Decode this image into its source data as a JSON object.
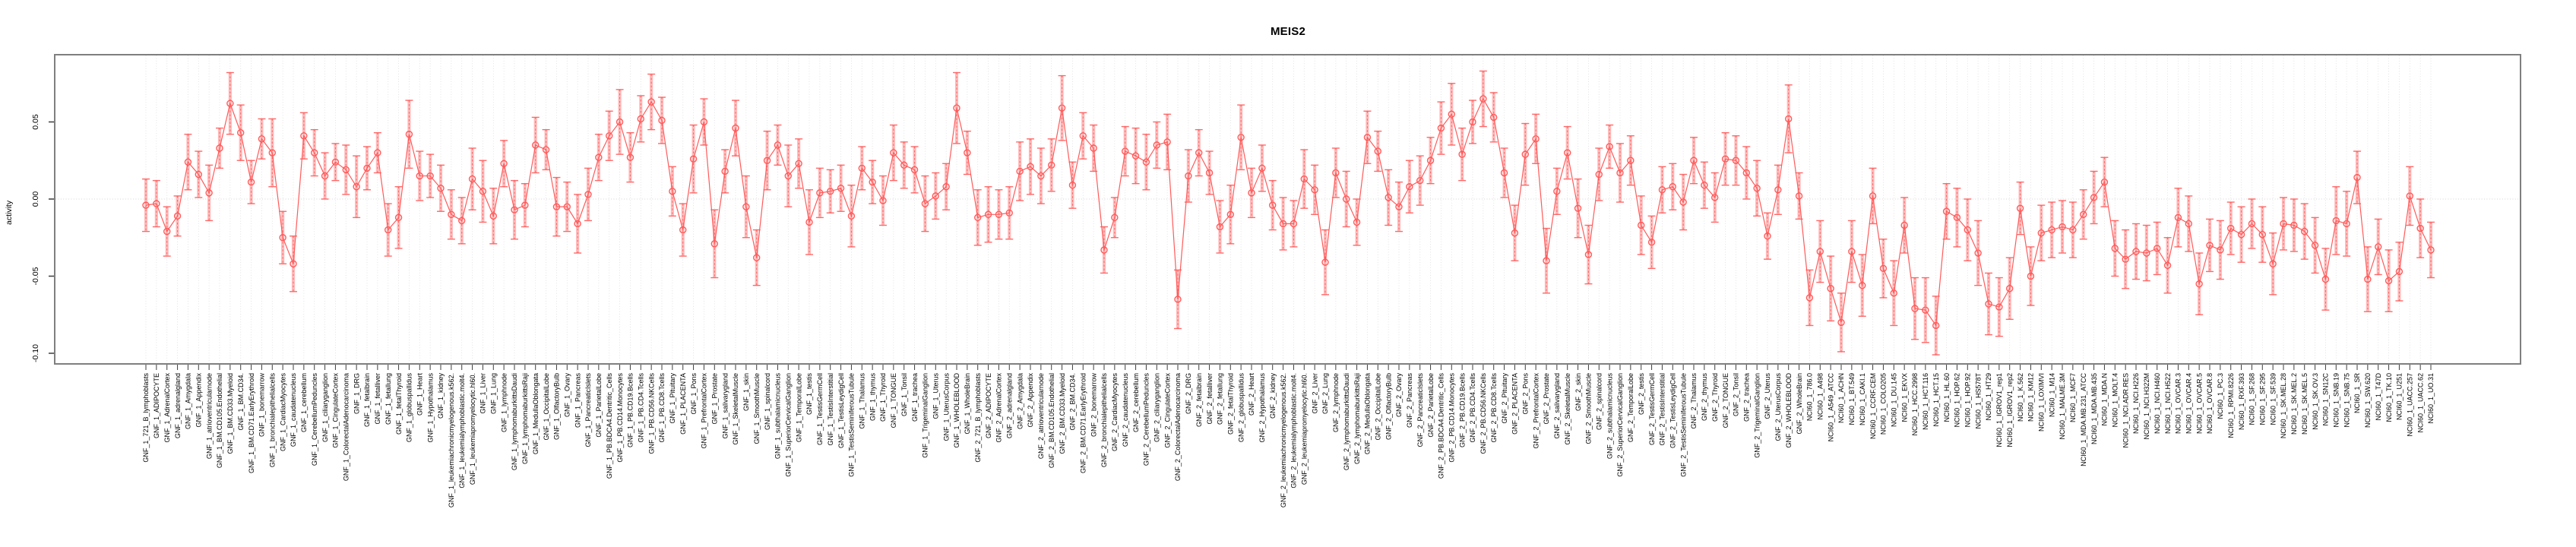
{
  "header": {
    "title": "MEIS2"
  },
  "chart_data": {
    "type": "line",
    "subtype": "point-range (mean with error bars)",
    "title": "MEIS2",
    "xlabel": "",
    "ylabel": "activity",
    "ylim": [
      -0.107,
      0.094
    ],
    "yticks": [
      0.05,
      0.0,
      -0.05,
      -0.1
    ],
    "ytick_labels": [
      "0.05",
      "0.00",
      "-0.05",
      "-0.10"
    ],
    "grid": "dotted vertical gridline per category; dotted horizontal line at 0",
    "legend_position": "none",
    "colors": {
      "series": "#ff5a5a",
      "error_band": "#ffb0b0",
      "gridline": "#dcdcdc",
      "zero_line": "#d4d4d4",
      "frame": "#7f7f7f",
      "tick": "#3c3c3c",
      "text": "#000000"
    },
    "categories": [
      "GNF_1_721_B_lymphoblasts",
      "GNF_1_ADIPOCYTE",
      "GNF_1_AdrenalCortex",
      "GNF_1_adrenalgland",
      "GNF_1_Amygdala",
      "GNF_1_Appendix",
      "GNF_1_atrioventricularnode",
      "GNF_1_BM.CD105.Endothelial",
      "GNF_1_BM.CD33.Myeloid",
      "GNF_1_BM.CD34.",
      "GNF_1_BM.CD71.EarlyErythroid",
      "GNF_1_bonemarrow",
      "GNF_1_bronchialepithelialcells",
      "GNF_1_CardiacMyocytes",
      "GNF_1_caudatenucleus",
      "GNF_1_cerebellum",
      "GNF_1_CerebellumPeduncles",
      "GNF_1_ciliaryganglion",
      "GNF_1_CingulateCortex",
      "GNF_1_ColorectalAdenocarcinoma",
      "GNF_1_DRG",
      "GNF_1_fetalbrain",
      "GNF_1_fetalliver",
      "GNF_1_fetallung",
      "GNF_1_fetalThyroid",
      "GNF_1_globuspallidus",
      "GNF_1_Heart",
      "GNF_1_Hypothalamus",
      "GNF_1_kidney",
      "GNF_1_leukemiachronicmyelogenous.k562.",
      "GNF_1_leukemialymphoblastic.molt4.",
      "GNF_1_leukemiapromyelocytic.hl60.",
      "GNF_1_Liver",
      "GNF_1_Lung",
      "GNF_1_lymphnode",
      "GNF_1_lymphomaburkittsDaudi",
      "GNF_1_lymphomaburkittsRaji",
      "GNF_1_MedullaOblongata",
      "GNF_1_OccipitalLobe",
      "GNF_1_OlfactoryBulb",
      "GNF_1_Ovary",
      "GNF_1_Pancreas",
      "GNF_1_PancreaticIslets",
      "GNF_1_ParietalLobe",
      "GNF_1_PB.BDCA4.Dentritic_Cells",
      "GNF_1_PB.CD14.Monocytes",
      "GNF_1_PB.CD19.Bcells",
      "GNF_1_PB.CD4.Tcells",
      "GNF_1_PB.CD56.NKCells",
      "GNF_1_PB.CD8.Tcells",
      "GNF_1_Pituitary",
      "GNF_1_PLACENTA",
      "GNF_1_Pons",
      "GNF_1_PrefrontalCortex",
      "GNF_1_Prostate",
      "GNF_1_salivarygland",
      "GNF_1_SkeletalMuscle",
      "GNF_1_skin",
      "GNF_1_SmoothMuscle",
      "GNF_1_spinalcord",
      "GNF_1_subthalamicnucleus",
      "GNF_1_SuperiorCervicalGanglion",
      "GNF_1_TemporalLobe",
      "GNF_1_testis",
      "GNF_1_TestisGermCell",
      "GNF_1_TestisInterstitial",
      "GNF_1_TestisLeydigCell",
      "GNF_1_TestisSeminiferousTubule",
      "GNF_1_Thalamus",
      "GNF_1_thymus",
      "GNF_1_Thyroid",
      "GNF_1_TONGUE",
      "GNF_1_Tonsil",
      "GNF_1_trachea",
      "GNF_1_TrigeminalGanglion",
      "GNF_1_Uterus",
      "GNF_1_UterusCorpus",
      "GNF_1_WHOLEBLOOD",
      "GNF_1_WholeBrain",
      "GNF_2_721_B_lymphoblasts",
      "GNF_2_ADIPOCYTE",
      "GNF_2_AdrenalCortex",
      "GNF_2_adrenalgland",
      "GNF_2_Amygdala",
      "GNF_2_Appendix",
      "GNF_2_atrioventricularnode",
      "GNF_2_BM.CD105.Endothelial",
      "GNF_2_BM.CD33.Myeloid",
      "GNF_2_BM.CD34.",
      "GNF_2_BM.CD71.EarlyErythroid",
      "GNF_2_bonemarrow",
      "GNF_2_bronchialepithelialcells",
      "GNF_2_CardiacMyocytes",
      "GNF_2_caudatenucleus",
      "GNF_2_cerebellum",
      "GNF_2_CerebellumPeduncles",
      "GNF_2_ciliaryganglion",
      "GNF_2_CingulateCortex",
      "GNF_2_ColorectalAdenocarcinoma",
      "GNF_2_DRG",
      "GNF_2_fetalbrain",
      "GNF_2_fetalliver",
      "GNF_2_fetallung",
      "GNF_2_fetalThyroid",
      "GNF_2_globuspallidus",
      "GNF_2_Heart",
      "GNF_2_Hypothalamus",
      "GNF_2_kidney",
      "GNF_2_leukemiachronicmyelogenous.k562.",
      "GNF_2_leukemialymphoblastic.molt4.",
      "GNF_2_leukemiapromyelocytic.hl60.",
      "GNF_2_Liver",
      "GNF_2_Lung",
      "GNF_2_lymphnode",
      "GNF_2_lymphomaburkittsDaudi",
      "GNF_2_lymphomaburkittsRaji",
      "GNF_2_MedullaOblongata",
      "GNF_2_OccipitalLobe",
      "GNF_2_OlfactoryBulb",
      "GNF_2_Ovary",
      "GNF_2_Pancreas",
      "GNF_2_PancreaticIslets",
      "GNF_2_ParietalLobe",
      "GNF_2_PB.BDCA4.Dentritic_Cells",
      "GNF_2_PB.CD14.Monocytes",
      "GNF_2_PB.CD19.Bcells",
      "GNF_2_PB.CD4.Tcells",
      "GNF_2_PB.CD56.NKCells",
      "GNF_2_PB.CD8.Tcells",
      "GNF_2_Pituitary",
      "GNF_2_PLACENTA",
      "GNF_2_Pons",
      "GNF_2_PrefrontalCortex",
      "GNF_2_Prostate",
      "GNF_2_salivarygland",
      "GNF_2_SkeletalMuscle",
      "GNF_2_skin",
      "GNF_2_SmoothMuscle",
      "GNF_2_spinalcord",
      "GNF_2_subthalamicnucleus",
      "GNF_2_SuperiorCervicalGanglion",
      "GNF_2_TemporalLobe",
      "GNF_2_testis",
      "GNF_2_TestisGermCell",
      "GNF_2_TestisInterstitial",
      "GNF_2_TestisLeydigCell",
      "GNF_2_TestisSeminiferousTubule",
      "GNF_2_Thalamus",
      "GNF_2_thymus",
      "GNF_2_Thyroid",
      "GNF_2_TONGUE",
      "GNF_2_Tonsil",
      "GNF_2_trachea",
      "GNF_2_TrigeminalGanglion",
      "GNF_2_Uterus",
      "GNF_2_UterusCorpus",
      "GNF_2_WHOLEBLOOD",
      "GNF_2_WholeBrain",
      "NCI60_1_786.0",
      "NCI60_1_A498",
      "NCI60_1_A549_ATCC",
      "NCI60_1_ACHN",
      "NCI60_1_BT.549",
      "NCI60_1_CAKI.1",
      "NCI60_1_CCRF.CEM",
      "NCI60_1_COLO205",
      "NCI60_1_DU.145",
      "NCI60_1_EKVX",
      "NCI60_1_HCC.2998",
      "NCI60_1_HCT.116",
      "NCI60_1_HCT.15",
      "NCI60_1_HL.60",
      "NCI60_1_HOP.62",
      "NCI60_1_HOP.92",
      "NCI60_1_HS578T",
      "NCI60_1_HT29",
      "NCI60_1_IGROV1_rep1",
      "NCI60_1_IGROV1_rep2",
      "NCI60_1_K.562",
      "NCI60_1_KM12",
      "NCI60_1_LOXIMVI",
      "NCI60_1_M14",
      "NCI60_1_MALME.3M",
      "NCI60_1_MCF7",
      "NCI60_1_MDA.MB.231_ATCC",
      "NCI60_1_MDA.MB.435",
      "NCI60_1_MDA.N",
      "NCI60_1_MOLT.4",
      "NCI60_1_NCI.ADR.RES",
      "NCI60_1_NCI.H226",
      "NCI60_1_NCI.H322M",
      "NCI60_1_NCI.H460",
      "NCI60_1_NCI.H522",
      "NCI60_1_OVCAR.3",
      "NCI60_1_OVCAR.4",
      "NCI60_1_OVCAR.5",
      "NCI60_1_OVCAR.8",
      "NCI60_1_PC.3",
      "NCI60_1_RPMI.8226",
      "NCI60_1_RXF.393",
      "NCI60_1_SF.268",
      "NCI60_1_SF.295",
      "NCI60_1_SF.539",
      "NCI60_1_SK.MEL.28",
      "NCI60_1_SK.MEL.2",
      "NCI60_1_SK.MEL.5",
      "NCI60_1_SK.OV.3",
      "NCI60_1_SN12C",
      "NCI60_1_SNB.19",
      "NCI60_1_SNB.75",
      "NCI60_1_SR",
      "NCI60_1_SW.620",
      "NCI60_1_T47D",
      "NCI60_1_TK.10",
      "NCI60_1_U251",
      "NCI60_1_UACC.257",
      "NCI60_1_UACC.62",
      "NCI60_1_UO.31"
    ],
    "values": [
      -0.004,
      -0.003,
      -0.021,
      -0.011,
      0.024,
      0.016,
      0.004,
      0.033,
      0.062,
      0.043,
      0.011,
      0.039,
      0.03,
      -0.025,
      -0.042,
      0.041,
      0.03,
      0.015,
      0.024,
      0.019,
      0.008,
      0.02,
      0.03,
      -0.02,
      -0.012,
      0.042,
      0.015,
      0.015,
      0.007,
      -0.01,
      -0.014,
      0.013,
      0.005,
      -0.011,
      0.023,
      -0.007,
      -0.004,
      0.035,
      0.032,
      -0.005,
      -0.005,
      -0.016,
      0.003,
      0.027,
      0.041,
      0.05,
      0.027,
      0.052,
      0.063,
      0.051,
      0.005,
      -0.02,
      0.026,
      0.05,
      -0.029,
      0.018,
      0.046,
      -0.005,
      -0.038,
      0.025,
      0.035,
      0.015,
      0.023,
      -0.015,
      0.004,
      0.005,
      0.007,
      -0.011,
      0.02,
      0.011,
      -0.001,
      0.03,
      0.022,
      0.019,
      -0.003,
      0.002,
      0.008,
      0.059,
      0.03,
      -0.012,
      -0.01,
      -0.01,
      -0.009,
      0.018,
      0.021,
      0.015,
      0.022,
      0.059,
      0.009,
      0.041,
      0.033,
      -0.033,
      -0.012,
      0.031,
      0.028,
      0.024,
      0.035,
      0.037,
      -0.065,
      0.015,
      0.03,
      0.017,
      -0.018,
      -0.01,
      0.04,
      0.004,
      0.02,
      -0.004,
      -0.016,
      -0.016,
      0.013,
      0.006,
      -0.041,
      0.017,
      0.0,
      -0.015,
      0.04,
      0.031,
      0.001,
      -0.005,
      0.008,
      0.012,
      0.025,
      0.046,
      0.055,
      0.029,
      0.05,
      0.065,
      0.053,
      0.017,
      -0.022,
      0.029,
      0.039,
      -0.04,
      0.005,
      0.03,
      -0.006,
      -0.036,
      0.016,
      0.034,
      0.017,
      0.025,
      -0.017,
      -0.028,
      0.006,
      0.008,
      -0.002,
      0.025,
      0.009,
      0.001,
      0.026,
      0.025,
      0.017,
      0.007,
      -0.024,
      0.006,
      0.052,
      0.002,
      -0.064,
      -0.034,
      -0.058,
      -0.08,
      -0.034,
      -0.056,
      0.002,
      -0.045,
      -0.061,
      -0.017,
      -0.071,
      -0.072,
      -0.082,
      -0.008,
      -0.012,
      -0.02,
      -0.035,
      -0.068,
      -0.07,
      -0.058,
      -0.006,
      -0.05,
      -0.022,
      -0.02,
      -0.018,
      -0.02,
      -0.01,
      0.001,
      0.011,
      -0.032,
      -0.039,
      -0.034,
      -0.035,
      -0.032,
      -0.043,
      -0.012,
      -0.016,
      -0.055,
      -0.03,
      -0.033,
      -0.019,
      -0.023,
      -0.016,
      -0.023,
      -0.042,
      -0.016,
      -0.017,
      -0.021,
      -0.03,
      -0.052,
      -0.014,
      -0.016,
      0.014,
      -0.052,
      -0.031,
      -0.053,
      -0.047,
      0.002,
      -0.019,
      -0.033
    ],
    "errors": [
      0.017,
      0.015,
      0.016,
      0.013,
      0.018,
      0.015,
      0.018,
      0.013,
      0.02,
      0.018,
      0.014,
      0.013,
      0.022,
      0.017,
      0.018,
      0.015,
      0.015,
      0.015,
      0.012,
      0.016,
      0.02,
      0.014,
      0.013,
      0.017,
      0.02,
      0.022,
      0.016,
      0.014,
      0.015,
      0.016,
      0.015,
      0.02,
      0.02,
      0.018,
      0.015,
      0.019,
      0.014,
      0.018,
      0.013,
      0.019,
      0.016,
      0.019,
      0.017,
      0.015,
      0.016,
      0.021,
      0.016,
      0.015,
      0.018,
      0.015,
      0.016,
      0.017,
      0.022,
      0.015,
      0.022,
      0.014,
      0.018,
      0.02,
      0.018,
      0.019,
      0.013,
      0.02,
      0.016,
      0.021,
      0.016,
      0.014,
      0.015,
      0.02,
      0.014,
      0.014,
      0.016,
      0.018,
      0.015,
      0.015,
      0.018,
      0.015,
      0.015,
      0.023,
      0.014,
      0.018,
      0.018,
      0.016,
      0.017,
      0.019,
      0.018,
      0.018,
      0.017,
      0.021,
      0.015,
      0.015,
      0.015,
      0.015,
      0.013,
      0.016,
      0.018,
      0.018,
      0.015,
      0.018,
      0.019,
      0.017,
      0.015,
      0.014,
      0.017,
      0.019,
      0.021,
      0.016,
      0.015,
      0.016,
      0.017,
      0.015,
      0.019,
      0.016,
      0.021,
      0.016,
      0.018,
      0.015,
      0.017,
      0.013,
      0.018,
      0.016,
      0.017,
      0.016,
      0.015,
      0.017,
      0.02,
      0.017,
      0.014,
      0.018,
      0.016,
      0.016,
      0.018,
      0.02,
      0.016,
      0.021,
      0.015,
      0.017,
      0.019,
      0.019,
      0.017,
      0.014,
      0.019,
      0.016,
      0.019,
      0.017,
      0.015,
      0.015,
      0.018,
      0.015,
      0.015,
      0.016,
      0.017,
      0.016,
      0.017,
      0.018,
      0.015,
      0.016,
      0.022,
      0.015,
      0.018,
      0.02,
      0.021,
      0.019,
      0.02,
      0.02,
      0.018,
      0.019,
      0.021,
      0.018,
      0.02,
      0.021,
      0.019,
      0.018,
      0.019,
      0.02,
      0.021,
      0.02,
      0.019,
      0.02,
      0.017,
      0.019,
      0.018,
      0.018,
      0.017,
      0.018,
      0.016,
      0.017,
      0.016,
      0.018,
      0.019,
      0.018,
      0.018,
      0.017,
      0.018,
      0.019,
      0.018,
      0.02,
      0.017,
      0.019,
      0.017,
      0.018,
      0.016,
      0.018,
      0.02,
      0.017,
      0.017,
      0.018,
      0.018,
      0.02,
      0.022,
      0.021,
      0.017,
      0.021,
      0.018,
      0.02,
      0.019,
      0.019,
      0.019,
      0.018
    ]
  }
}
